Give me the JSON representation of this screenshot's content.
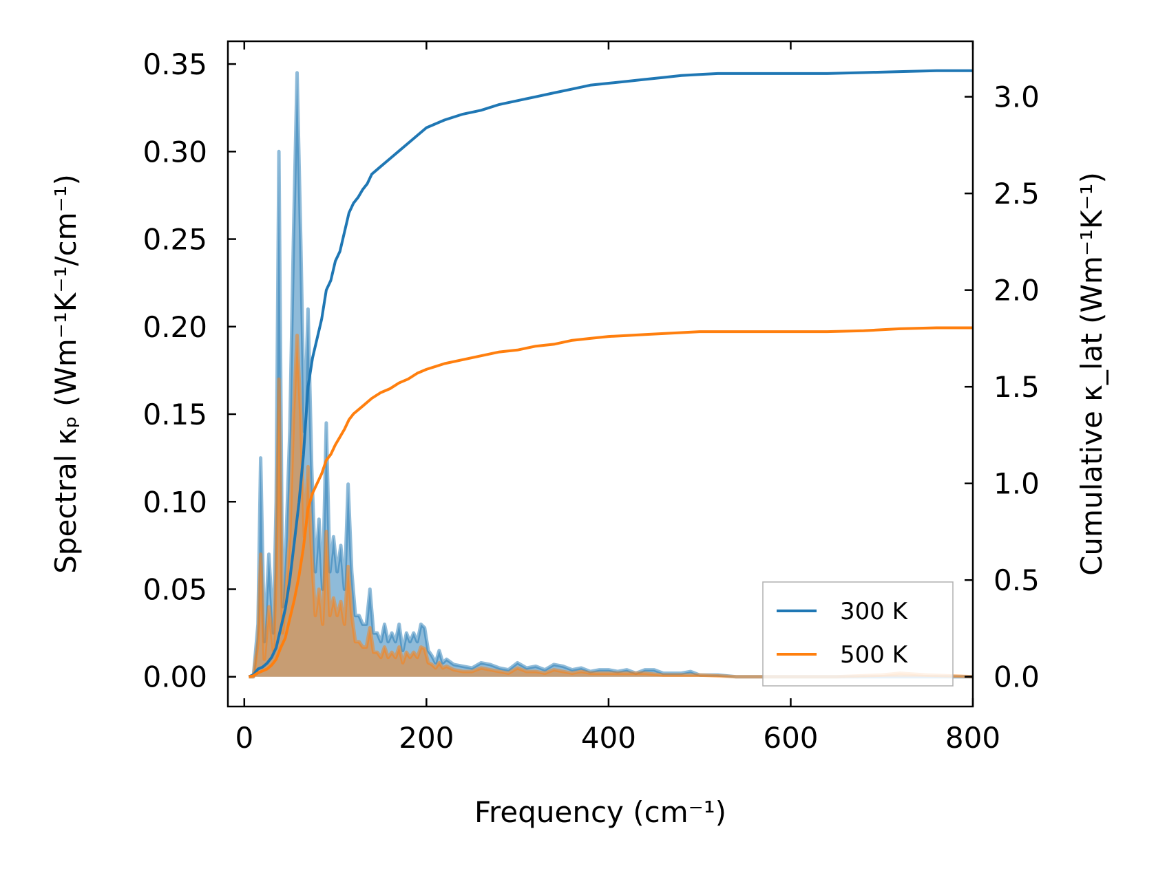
{
  "chart_data": {
    "type": "line",
    "xlabel": "Frequency (cm⁻¹)",
    "ylabel_left": "Spectral κₚ (Wm⁻¹K⁻¹/cm⁻¹)",
    "ylabel_right": "Cumulative κ_lat (Wm⁻¹K⁻¹)",
    "xlim": [
      -18,
      800
    ],
    "ylim_left": [
      -0.017,
      0.363
    ],
    "ylim_right": [
      -0.154,
      3.287
    ],
    "x_ticks": [
      0,
      200,
      400,
      600,
      800
    ],
    "x_tick_labels": [
      "0",
      "200",
      "400",
      "600",
      "800"
    ],
    "y_left_ticks": [
      0,
      0.05,
      0.1,
      0.15,
      0.2,
      0.25,
      0.3,
      0.35
    ],
    "y_left_tick_labels": [
      "0.00",
      "0.05",
      "0.10",
      "0.15",
      "0.20",
      "0.25",
      "0.30",
      "0.35"
    ],
    "y_right_ticks": [
      0,
      0.5,
      1.0,
      1.5,
      2.0,
      2.5,
      3.0
    ],
    "y_right_tick_labels": [
      "0.0",
      "0.5",
      "1.0",
      "1.5",
      "2.0",
      "2.5",
      "3.0"
    ],
    "legend_position": "bottom-right",
    "grid": false,
    "series": [
      {
        "name": "300 K",
        "color": "#1f77b4",
        "spectral": [
          [
            5,
            0
          ],
          [
            10,
            0
          ],
          [
            15,
            0.03
          ],
          [
            18,
            0.125
          ],
          [
            22,
            0.02
          ],
          [
            27,
            0.07
          ],
          [
            32,
            0.025
          ],
          [
            35,
            0.1
          ],
          [
            38,
            0.3
          ],
          [
            42,
            0.04
          ],
          [
            46,
            0.08
          ],
          [
            50,
            0.14
          ],
          [
            54,
            0.25
          ],
          [
            58,
            0.345
          ],
          [
            62,
            0.25
          ],
          [
            66,
            0.14
          ],
          [
            70,
            0.21
          ],
          [
            74,
            0.12
          ],
          [
            78,
            0.06
          ],
          [
            82,
            0.09
          ],
          [
            86,
            0.05
          ],
          [
            90,
            0.145
          ],
          [
            94,
            0.06
          ],
          [
            98,
            0.08
          ],
          [
            102,
            0.06
          ],
          [
            106,
            0.075
          ],
          [
            110,
            0.05
          ],
          [
            114,
            0.11
          ],
          [
            118,
            0.06
          ],
          [
            122,
            0.035
          ],
          [
            126,
            0.035
          ],
          [
            130,
            0.03
          ],
          [
            134,
            0.03
          ],
          [
            138,
            0.05
          ],
          [
            142,
            0.025
          ],
          [
            146,
            0.025
          ],
          [
            150,
            0.02
          ],
          [
            154,
            0.03
          ],
          [
            158,
            0.02
          ],
          [
            162,
            0.025
          ],
          [
            166,
            0.02
          ],
          [
            170,
            0.03
          ],
          [
            174,
            0.015
          ],
          [
            178,
            0.025
          ],
          [
            182,
            0.02
          ],
          [
            186,
            0.025
          ],
          [
            190,
            0.02
          ],
          [
            194,
            0.03
          ],
          [
            198,
            0.028
          ],
          [
            202,
            0.015
          ],
          [
            206,
            0.012
          ],
          [
            210,
            0.008
          ],
          [
            214,
            0.015
          ],
          [
            218,
            0.008
          ],
          [
            222,
            0.01
          ],
          [
            230,
            0.007
          ],
          [
            240,
            0.006
          ],
          [
            250,
            0.005
          ],
          [
            260,
            0.008
          ],
          [
            270,
            0.007
          ],
          [
            280,
            0.005
          ],
          [
            290,
            0.004
          ],
          [
            300,
            0.008
          ],
          [
            310,
            0.005
          ],
          [
            320,
            0.006
          ],
          [
            330,
            0.004
          ],
          [
            340,
            0.007
          ],
          [
            350,
            0.006
          ],
          [
            360,
            0.004
          ],
          [
            370,
            0.005
          ],
          [
            380,
            0.003
          ],
          [
            390,
            0.004
          ],
          [
            400,
            0.004
          ],
          [
            410,
            0.003
          ],
          [
            420,
            0.004
          ],
          [
            430,
            0.002
          ],
          [
            440,
            0.004
          ],
          [
            450,
            0.004
          ],
          [
            460,
            0.002
          ],
          [
            470,
            0.002
          ],
          [
            480,
            0.002
          ],
          [
            490,
            0.003
          ],
          [
            500,
            0.001
          ],
          [
            520,
            0.001
          ],
          [
            540,
            0
          ],
          [
            560,
            0
          ],
          [
            600,
            0
          ],
          [
            650,
            0
          ],
          [
            700,
            0
          ],
          [
            750,
            0
          ],
          [
            800,
            0
          ]
        ],
        "cumulative": [
          [
            5,
            0
          ],
          [
            10,
            0.01
          ],
          [
            15,
            0.04
          ],
          [
            20,
            0.05
          ],
          [
            25,
            0.07
          ],
          [
            30,
            0.1
          ],
          [
            35,
            0.15
          ],
          [
            40,
            0.25
          ],
          [
            45,
            0.35
          ],
          [
            50,
            0.5
          ],
          [
            55,
            0.7
          ],
          [
            60,
            0.9
          ],
          [
            65,
            1.15
          ],
          [
            70,
            1.5
          ],
          [
            75,
            1.65
          ],
          [
            80,
            1.75
          ],
          [
            85,
            1.85
          ],
          [
            90,
            2.0
          ],
          [
            95,
            2.05
          ],
          [
            100,
            2.15
          ],
          [
            105,
            2.2
          ],
          [
            110,
            2.3
          ],
          [
            115,
            2.4
          ],
          [
            120,
            2.45
          ],
          [
            125,
            2.48
          ],
          [
            130,
            2.52
          ],
          [
            135,
            2.55
          ],
          [
            140,
            2.6
          ],
          [
            150,
            2.64
          ],
          [
            160,
            2.68
          ],
          [
            170,
            2.72
          ],
          [
            180,
            2.76
          ],
          [
            190,
            2.8
          ],
          [
            200,
            2.84
          ],
          [
            210,
            2.86
          ],
          [
            220,
            2.88
          ],
          [
            240,
            2.91
          ],
          [
            260,
            2.93
          ],
          [
            280,
            2.96
          ],
          [
            300,
            2.98
          ],
          [
            320,
            3.0
          ],
          [
            340,
            3.02
          ],
          [
            360,
            3.04
          ],
          [
            380,
            3.06
          ],
          [
            400,
            3.07
          ],
          [
            420,
            3.08
          ],
          [
            440,
            3.09
          ],
          [
            460,
            3.1
          ],
          [
            480,
            3.11
          ],
          [
            500,
            3.115
          ],
          [
            520,
            3.12
          ],
          [
            560,
            3.12
          ],
          [
            600,
            3.12
          ],
          [
            640,
            3.12
          ],
          [
            680,
            3.125
          ],
          [
            720,
            3.13
          ],
          [
            760,
            3.135
          ],
          [
            800,
            3.135
          ]
        ]
      },
      {
        "name": "500 K",
        "color": "#ff7f0e",
        "spectral": [
          [
            5,
            0
          ],
          [
            10,
            0
          ],
          [
            15,
            0.02
          ],
          [
            18,
            0.07
          ],
          [
            22,
            0.01
          ],
          [
            27,
            0.04
          ],
          [
            32,
            0.015
          ],
          [
            35,
            0.06
          ],
          [
            38,
            0.17
          ],
          [
            42,
            0.025
          ],
          [
            46,
            0.05
          ],
          [
            50,
            0.08
          ],
          [
            54,
            0.15
          ],
          [
            58,
            0.195
          ],
          [
            62,
            0.15
          ],
          [
            66,
            0.08
          ],
          [
            70,
            0.12
          ],
          [
            74,
            0.07
          ],
          [
            78,
            0.035
          ],
          [
            82,
            0.05
          ],
          [
            86,
            0.03
          ],
          [
            90,
            0.083
          ],
          [
            94,
            0.035
          ],
          [
            98,
            0.045
          ],
          [
            102,
            0.035
          ],
          [
            106,
            0.043
          ],
          [
            110,
            0.03
          ],
          [
            114,
            0.063
          ],
          [
            118,
            0.035
          ],
          [
            122,
            0.02
          ],
          [
            126,
            0.02
          ],
          [
            130,
            0.017
          ],
          [
            134,
            0.017
          ],
          [
            138,
            0.028
          ],
          [
            142,
            0.014
          ],
          [
            146,
            0.014
          ],
          [
            150,
            0.011
          ],
          [
            154,
            0.017
          ],
          [
            158,
            0.011
          ],
          [
            162,
            0.014
          ],
          [
            166,
            0.011
          ],
          [
            170,
            0.017
          ],
          [
            174,
            0.008
          ],
          [
            178,
            0.014
          ],
          [
            182,
            0.011
          ],
          [
            186,
            0.014
          ],
          [
            190,
            0.011
          ],
          [
            194,
            0.017
          ],
          [
            198,
            0.016
          ],
          [
            202,
            0.008
          ],
          [
            206,
            0.007
          ],
          [
            210,
            0.005
          ],
          [
            214,
            0.008
          ],
          [
            218,
            0.005
          ],
          [
            222,
            0.006
          ],
          [
            230,
            0.004
          ],
          [
            240,
            0.003
          ],
          [
            250,
            0.003
          ],
          [
            260,
            0.005
          ],
          [
            270,
            0.004
          ],
          [
            280,
            0.003
          ],
          [
            290,
            0.002
          ],
          [
            300,
            0.005
          ],
          [
            310,
            0.003
          ],
          [
            320,
            0.003
          ],
          [
            330,
            0.002
          ],
          [
            340,
            0.004
          ],
          [
            350,
            0.003
          ],
          [
            360,
            0.002
          ],
          [
            370,
            0.003
          ],
          [
            380,
            0.002
          ],
          [
            390,
            0.002
          ],
          [
            400,
            0.002
          ],
          [
            420,
            0.002
          ],
          [
            440,
            0.002
          ],
          [
            460,
            0.001
          ],
          [
            480,
            0.001
          ],
          [
            500,
            0.001
          ],
          [
            540,
            0
          ],
          [
            600,
            0
          ],
          [
            650,
            0
          ],
          [
            700,
            0.001
          ],
          [
            720,
            0.002
          ],
          [
            750,
            0.001
          ],
          [
            800,
            0
          ]
        ],
        "cumulative": [
          [
            5,
            0
          ],
          [
            10,
            0.005
          ],
          [
            15,
            0.02
          ],
          [
            20,
            0.03
          ],
          [
            25,
            0.04
          ],
          [
            30,
            0.06
          ],
          [
            35,
            0.09
          ],
          [
            40,
            0.15
          ],
          [
            45,
            0.2
          ],
          [
            50,
            0.3
          ],
          [
            55,
            0.4
          ],
          [
            60,
            0.52
          ],
          [
            65,
            0.67
          ],
          [
            70,
            0.87
          ],
          [
            75,
            0.95
          ],
          [
            80,
            1.0
          ],
          [
            85,
            1.05
          ],
          [
            90,
            1.12
          ],
          [
            95,
            1.15
          ],
          [
            100,
            1.2
          ],
          [
            105,
            1.24
          ],
          [
            110,
            1.28
          ],
          [
            115,
            1.33
          ],
          [
            120,
            1.36
          ],
          [
            130,
            1.4
          ],
          [
            140,
            1.44
          ],
          [
            150,
            1.47
          ],
          [
            160,
            1.49
          ],
          [
            170,
            1.52
          ],
          [
            180,
            1.54
          ],
          [
            190,
            1.57
          ],
          [
            200,
            1.59
          ],
          [
            220,
            1.62
          ],
          [
            240,
            1.64
          ],
          [
            260,
            1.66
          ],
          [
            280,
            1.68
          ],
          [
            300,
            1.69
          ],
          [
            320,
            1.71
          ],
          [
            340,
            1.72
          ],
          [
            360,
            1.74
          ],
          [
            380,
            1.75
          ],
          [
            400,
            1.76
          ],
          [
            420,
            1.765
          ],
          [
            440,
            1.77
          ],
          [
            460,
            1.775
          ],
          [
            480,
            1.78
          ],
          [
            500,
            1.785
          ],
          [
            540,
            1.785
          ],
          [
            600,
            1.785
          ],
          [
            640,
            1.785
          ],
          [
            680,
            1.79
          ],
          [
            720,
            1.8
          ],
          [
            760,
            1.805
          ],
          [
            800,
            1.805
          ]
        ]
      }
    ]
  }
}
